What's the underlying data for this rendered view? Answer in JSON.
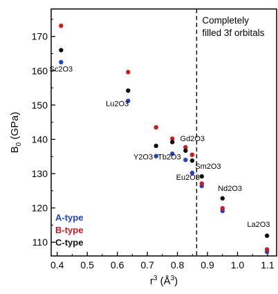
{
  "chart_data": {
    "type": "scatter",
    "xlabel_base": "r",
    "xlabel_sup": "3",
    "xlabel_unit": " (Å",
    "xlabel_unit_sup": "3",
    "xlabel_close": ")",
    "ylabel_base": "B",
    "ylabel_sub": "0",
    "ylabel_unit": " (GPa)",
    "xlim": [
      0.38,
      1.13
    ],
    "ylim": [
      106,
      178
    ],
    "x_ticks": [
      0.4,
      0.5,
      0.6,
      0.7,
      0.8,
      0.9,
      1.0,
      1.1
    ],
    "x_tick_labels": [
      "0.4",
      "0.5",
      "0.6",
      "0.7",
      "0.8",
      "0.9",
      "1.0",
      "1.1"
    ],
    "y_ticks": [
      110,
      120,
      130,
      140,
      150,
      160,
      170
    ],
    "y_tick_labels": [
      "110",
      "120",
      "130",
      "140",
      "150",
      "160",
      "170"
    ],
    "grid": false,
    "vline": {
      "x": 0.864,
      "label_lines": [
        "Completely",
        "filled 3f orbitals"
      ]
    },
    "legend": {
      "position": "bottom-left",
      "entries": [
        {
          "label": "A-type",
          "color": "#1f3fdc"
        },
        {
          "label": "B-type",
          "color": "#d8141b"
        },
        {
          "label": "C-type",
          "color": "#111111"
        }
      ]
    },
    "series": [
      {
        "name": "A-type",
        "color": "#1f3fdc",
        "points": [
          [
            0.413,
            162.5
          ],
          [
            0.636,
            151.2
          ],
          [
            0.729,
            135.1
          ],
          [
            0.783,
            135.8
          ],
          [
            0.827,
            134.0
          ],
          [
            0.849,
            130.2
          ],
          [
            0.881,
            126.4
          ],
          [
            0.95,
            119.1
          ],
          [
            1.098,
            107.2
          ]
        ]
      },
      {
        "name": "B-type",
        "color": "#d8141b",
        "points": [
          [
            0.413,
            173.1
          ],
          [
            0.636,
            159.6
          ],
          [
            0.729,
            143.5
          ],
          [
            0.783,
            140.2
          ],
          [
            0.827,
            137.7
          ],
          [
            0.849,
            135.5
          ],
          [
            0.881,
            127.1
          ],
          [
            0.95,
            119.9
          ],
          [
            1.098,
            107.9
          ]
        ]
      },
      {
        "name": "C-type",
        "color": "#111111",
        "points": [
          [
            0.413,
            166.0
          ],
          [
            0.636,
            154.2
          ],
          [
            0.729,
            138.1
          ],
          [
            0.783,
            139.2
          ],
          [
            0.827,
            136.7
          ],
          [
            0.849,
            133.8
          ],
          [
            0.881,
            129.2
          ],
          [
            0.95,
            122.8
          ],
          [
            1.098,
            111.9
          ]
        ]
      }
    ],
    "annotations": [
      {
        "text": "Sc2O3",
        "x": 0.413,
        "y": 159.7,
        "anchor": "middle"
      },
      {
        "text": "Lu2O3",
        "x": 0.6,
        "y": 149.7,
        "anchor": "middle"
      },
      {
        "text": "Y2O3",
        "x": 0.686,
        "y": 134.1,
        "anchor": "middle"
      },
      {
        "text": "Tb2O3",
        "x": 0.773,
        "y": 134.1,
        "anchor": "middle"
      },
      {
        "text": "Gd2O3",
        "x": 0.85,
        "y": 139.5,
        "anchor": "middle"
      },
      {
        "text": "Sm2O3",
        "x": 0.902,
        "y": 131.4,
        "anchor": "middle"
      },
      {
        "text": "Eu2O3",
        "x": 0.835,
        "y": 128.2,
        "anchor": "middle"
      },
      {
        "text": "Nd2O3",
        "x": 0.975,
        "y": 125.0,
        "anchor": "middle"
      },
      {
        "text": "La2O3",
        "x": 1.07,
        "y": 114.5,
        "anchor": "middle"
      }
    ]
  }
}
